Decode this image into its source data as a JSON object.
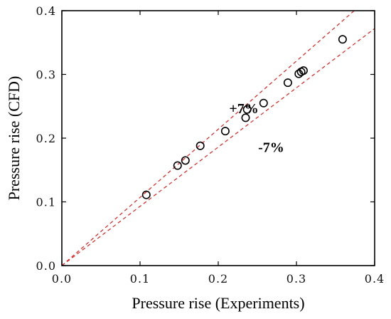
{
  "chart_data": {
    "type": "scatter",
    "xlabel": "Pressure rise (Experiments)",
    "ylabel": "Pressure rise (CFD)",
    "xlim": [
      0.0,
      0.4
    ],
    "ylim": [
      0.0,
      0.4
    ],
    "xticks": [
      "0.0",
      "0.1",
      "0.2",
      "0.3",
      "0.4"
    ],
    "yticks": [
      "0.0",
      "0.1",
      "0.2",
      "0.3",
      "0.4"
    ],
    "grid": false,
    "points": [
      {
        "x": 0.108,
        "y": 0.111
      },
      {
        "x": 0.148,
        "y": 0.157
      },
      {
        "x": 0.158,
        "y": 0.165
      },
      {
        "x": 0.177,
        "y": 0.188
      },
      {
        "x": 0.209,
        "y": 0.211
      },
      {
        "x": 0.235,
        "y": 0.232
      },
      {
        "x": 0.237,
        "y": 0.245
      },
      {
        "x": 0.258,
        "y": 0.255
      },
      {
        "x": 0.289,
        "y": 0.287
      },
      {
        "x": 0.303,
        "y": 0.301
      },
      {
        "x": 0.306,
        "y": 0.304
      },
      {
        "x": 0.309,
        "y": 0.306
      },
      {
        "x": 0.359,
        "y": 0.355
      }
    ],
    "reference_lines": [
      {
        "label": "+7%",
        "slope": 1.07,
        "color": "#e02020",
        "dash": true
      },
      {
        "label": "-7%",
        "slope": 0.93,
        "color": "#e02020",
        "dash": true
      }
    ],
    "annotations": [
      {
        "text": "+7%",
        "x": 0.214,
        "y": 0.239
      },
      {
        "text": "-7%",
        "x": 0.251,
        "y": 0.178
      }
    ]
  }
}
